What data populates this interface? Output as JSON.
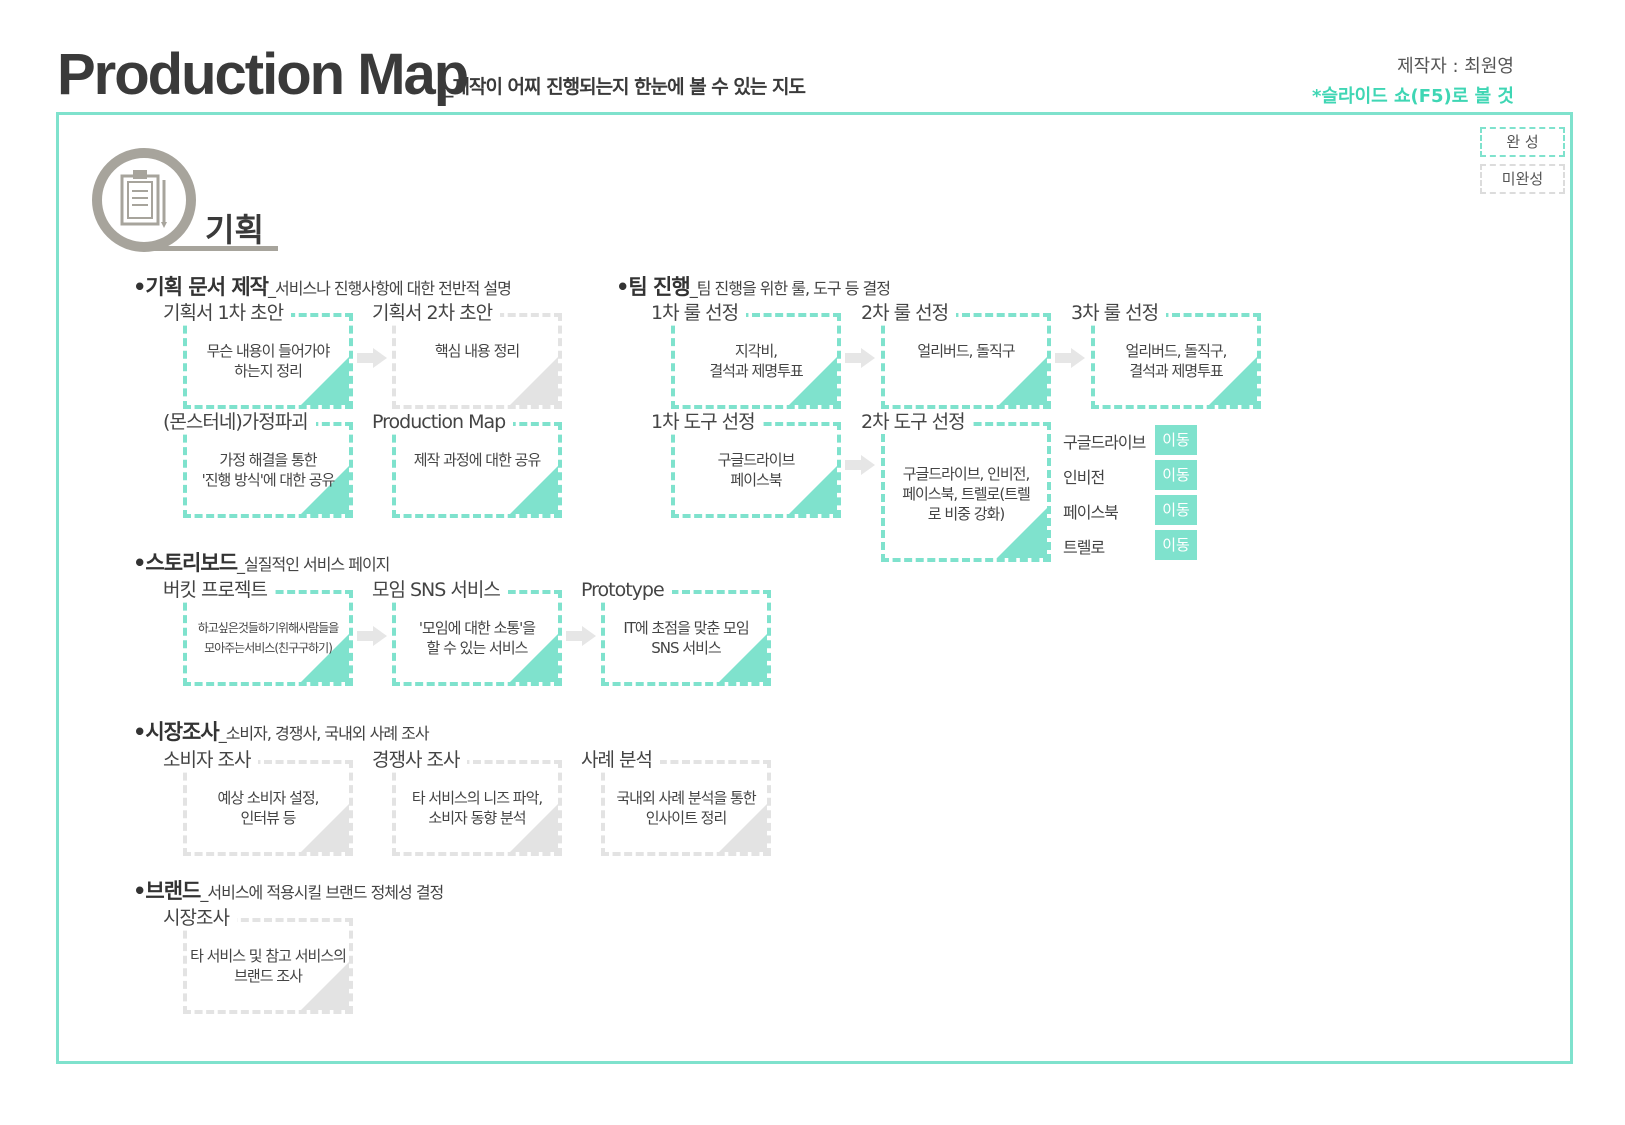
{
  "header": {
    "title": "Production  Map",
    "subtitle": "_제작이 어찌 진행되는지 한눈에 볼 수 있는 지도",
    "author": "제작자 : 최원영",
    "slide_note": "*슬라이드 쇼(F5)로 볼 것"
  },
  "legend": {
    "done": "완  성",
    "pending": "미완성"
  },
  "colors": {
    "accent": "#7fe2cd",
    "accent_text": "#3fd6b4",
    "pending": "#e3e3e3",
    "icon": "#a7a49c"
  },
  "section": {
    "title": "기획",
    "icon": "clipboard-icon"
  },
  "groups": {
    "planning_doc": {
      "title": "•기획 문서 제작",
      "desc": "_서비스나 진행사항에 대한 전반적 설명"
    },
    "team": {
      "title": "•팀 진행",
      "desc": "_팀 진행을 위한 룰, 도구 등 결정"
    },
    "storyboard": {
      "title": "•스토리보드",
      "desc": "_실질적인 서비스 페이지"
    },
    "market": {
      "title": "•시장조사",
      "desc": "_소비자, 경쟁사, 국내외 사례 조사"
    },
    "brand": {
      "title": "•브랜드",
      "desc": "_서비스에 적용시킬 브랜드 정체성 결정"
    }
  },
  "cards": {
    "draft1": {
      "label": "기획서 1차 초안",
      "body": "무슨 내용이 들어가야\n하는지 정리",
      "status": "done"
    },
    "draft2": {
      "label": "기획서 2차 초안",
      "body": "핵심 내용 정리",
      "status": "pending"
    },
    "hypothesis": {
      "label": "(몬스터네)가정파괴",
      "body": "가정 해결을 통한\n'진행 방식'에 대한 공유",
      "status": "done"
    },
    "prodmap": {
      "label": "Production Map",
      "body": "제작 과정에 대한 공유",
      "status": "done"
    },
    "rule1": {
      "label": "1차 룰 선정",
      "body": "지각비,\n결석과 제명투표",
      "status": "done"
    },
    "rule2": {
      "label": "2차 룰 선정",
      "body": "얼리버드, 돌직구",
      "status": "done"
    },
    "rule3": {
      "label": "3차 룰 선정",
      "body": "얼리버드, 돌직구,\n결석과 제명투표",
      "status": "done"
    },
    "tool1": {
      "label": "1차 도구 선정",
      "body": "구글드라이브\n페이스북",
      "status": "done"
    },
    "tool2": {
      "label": "2차 도구 선정",
      "body": "구글드라이브, 인비전,\n페이스북, 트렐로(트렐\n로 비중 강화)",
      "status": "done"
    },
    "bucket": {
      "label": "버킷 프로젝트",
      "body": "하고싶은것들하기위해사람들을\n모아주는서비스(친구구하기)",
      "status": "done"
    },
    "meet": {
      "label": "모임 SNS 서비스",
      "body": "'모임에 대한 소통'을\n할 수 있는 서비스",
      "status": "done"
    },
    "prototype": {
      "label": "Prototype",
      "body": "IT에 초점을 맞춘 모임\nSNS 서비스",
      "status": "done"
    },
    "consumer": {
      "label": "소비자 조사",
      "body": "예상 소비자 설정,\n인터뷰 등",
      "status": "pending"
    },
    "competitor": {
      "label": "경쟁사 조사",
      "body": "타 서비스의 니즈 파악,\n소비자 동향 분석",
      "status": "pending"
    },
    "case": {
      "label": "사례 분석",
      "body": "국내외 사례 분석을 통한\n인사이트 정리",
      "status": "pending"
    },
    "brandsurvey": {
      "label": "시장조사",
      "body": "타 서비스 및 참고 서비스의\n브랜드 조사",
      "status": "pending"
    }
  },
  "tools": [
    {
      "name": "구글드라이브",
      "action": "이동"
    },
    {
      "name": "인비전",
      "action": "이동"
    },
    {
      "name": "페이스북",
      "action": "이동"
    },
    {
      "name": "트렐로",
      "action": "이동"
    }
  ]
}
